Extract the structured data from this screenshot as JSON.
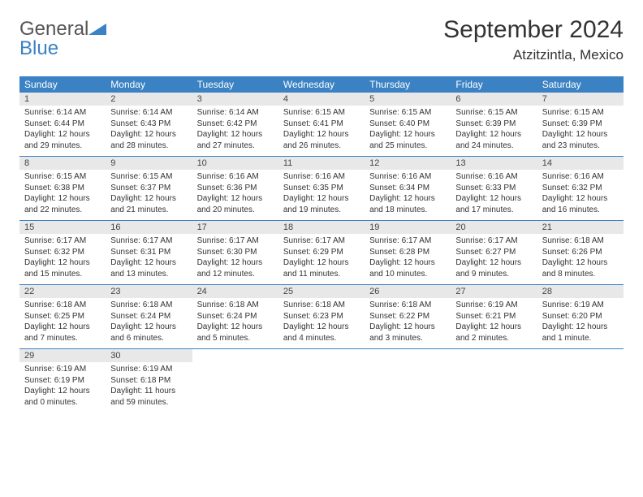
{
  "brand": {
    "name_part1": "General",
    "name_part2": "Blue"
  },
  "title": "September 2024",
  "location": "Atzitzintla, Mexico",
  "colors": {
    "header_bg": "#3b82c4",
    "daynum_bg": "#e8e8e8",
    "text": "#333333",
    "brand_gray": "#555555",
    "brand_blue": "#3b82c4"
  },
  "day_names": [
    "Sunday",
    "Monday",
    "Tuesday",
    "Wednesday",
    "Thursday",
    "Friday",
    "Saturday"
  ],
  "weeks": [
    [
      {
        "n": "1",
        "sr": "Sunrise: 6:14 AM",
        "ss": "Sunset: 6:44 PM",
        "dl": "Daylight: 12 hours and 29 minutes."
      },
      {
        "n": "2",
        "sr": "Sunrise: 6:14 AM",
        "ss": "Sunset: 6:43 PM",
        "dl": "Daylight: 12 hours and 28 minutes."
      },
      {
        "n": "3",
        "sr": "Sunrise: 6:14 AM",
        "ss": "Sunset: 6:42 PM",
        "dl": "Daylight: 12 hours and 27 minutes."
      },
      {
        "n": "4",
        "sr": "Sunrise: 6:15 AM",
        "ss": "Sunset: 6:41 PM",
        "dl": "Daylight: 12 hours and 26 minutes."
      },
      {
        "n": "5",
        "sr": "Sunrise: 6:15 AM",
        "ss": "Sunset: 6:40 PM",
        "dl": "Daylight: 12 hours and 25 minutes."
      },
      {
        "n": "6",
        "sr": "Sunrise: 6:15 AM",
        "ss": "Sunset: 6:39 PM",
        "dl": "Daylight: 12 hours and 24 minutes."
      },
      {
        "n": "7",
        "sr": "Sunrise: 6:15 AM",
        "ss": "Sunset: 6:39 PM",
        "dl": "Daylight: 12 hours and 23 minutes."
      }
    ],
    [
      {
        "n": "8",
        "sr": "Sunrise: 6:15 AM",
        "ss": "Sunset: 6:38 PM",
        "dl": "Daylight: 12 hours and 22 minutes."
      },
      {
        "n": "9",
        "sr": "Sunrise: 6:15 AM",
        "ss": "Sunset: 6:37 PM",
        "dl": "Daylight: 12 hours and 21 minutes."
      },
      {
        "n": "10",
        "sr": "Sunrise: 6:16 AM",
        "ss": "Sunset: 6:36 PM",
        "dl": "Daylight: 12 hours and 20 minutes."
      },
      {
        "n": "11",
        "sr": "Sunrise: 6:16 AM",
        "ss": "Sunset: 6:35 PM",
        "dl": "Daylight: 12 hours and 19 minutes."
      },
      {
        "n": "12",
        "sr": "Sunrise: 6:16 AM",
        "ss": "Sunset: 6:34 PM",
        "dl": "Daylight: 12 hours and 18 minutes."
      },
      {
        "n": "13",
        "sr": "Sunrise: 6:16 AM",
        "ss": "Sunset: 6:33 PM",
        "dl": "Daylight: 12 hours and 17 minutes."
      },
      {
        "n": "14",
        "sr": "Sunrise: 6:16 AM",
        "ss": "Sunset: 6:32 PM",
        "dl": "Daylight: 12 hours and 16 minutes."
      }
    ],
    [
      {
        "n": "15",
        "sr": "Sunrise: 6:17 AM",
        "ss": "Sunset: 6:32 PM",
        "dl": "Daylight: 12 hours and 15 minutes."
      },
      {
        "n": "16",
        "sr": "Sunrise: 6:17 AM",
        "ss": "Sunset: 6:31 PM",
        "dl": "Daylight: 12 hours and 13 minutes."
      },
      {
        "n": "17",
        "sr": "Sunrise: 6:17 AM",
        "ss": "Sunset: 6:30 PM",
        "dl": "Daylight: 12 hours and 12 minutes."
      },
      {
        "n": "18",
        "sr": "Sunrise: 6:17 AM",
        "ss": "Sunset: 6:29 PM",
        "dl": "Daylight: 12 hours and 11 minutes."
      },
      {
        "n": "19",
        "sr": "Sunrise: 6:17 AM",
        "ss": "Sunset: 6:28 PM",
        "dl": "Daylight: 12 hours and 10 minutes."
      },
      {
        "n": "20",
        "sr": "Sunrise: 6:17 AM",
        "ss": "Sunset: 6:27 PM",
        "dl": "Daylight: 12 hours and 9 minutes."
      },
      {
        "n": "21",
        "sr": "Sunrise: 6:18 AM",
        "ss": "Sunset: 6:26 PM",
        "dl": "Daylight: 12 hours and 8 minutes."
      }
    ],
    [
      {
        "n": "22",
        "sr": "Sunrise: 6:18 AM",
        "ss": "Sunset: 6:25 PM",
        "dl": "Daylight: 12 hours and 7 minutes."
      },
      {
        "n": "23",
        "sr": "Sunrise: 6:18 AM",
        "ss": "Sunset: 6:24 PM",
        "dl": "Daylight: 12 hours and 6 minutes."
      },
      {
        "n": "24",
        "sr": "Sunrise: 6:18 AM",
        "ss": "Sunset: 6:24 PM",
        "dl": "Daylight: 12 hours and 5 minutes."
      },
      {
        "n": "25",
        "sr": "Sunrise: 6:18 AM",
        "ss": "Sunset: 6:23 PM",
        "dl": "Daylight: 12 hours and 4 minutes."
      },
      {
        "n": "26",
        "sr": "Sunrise: 6:18 AM",
        "ss": "Sunset: 6:22 PM",
        "dl": "Daylight: 12 hours and 3 minutes."
      },
      {
        "n": "27",
        "sr": "Sunrise: 6:19 AM",
        "ss": "Sunset: 6:21 PM",
        "dl": "Daylight: 12 hours and 2 minutes."
      },
      {
        "n": "28",
        "sr": "Sunrise: 6:19 AM",
        "ss": "Sunset: 6:20 PM",
        "dl": "Daylight: 12 hours and 1 minute."
      }
    ],
    [
      {
        "n": "29",
        "sr": "Sunrise: 6:19 AM",
        "ss": "Sunset: 6:19 PM",
        "dl": "Daylight: 12 hours and 0 minutes."
      },
      {
        "n": "30",
        "sr": "Sunrise: 6:19 AM",
        "ss": "Sunset: 6:18 PM",
        "dl": "Daylight: 11 hours and 59 minutes."
      },
      null,
      null,
      null,
      null,
      null
    ]
  ]
}
